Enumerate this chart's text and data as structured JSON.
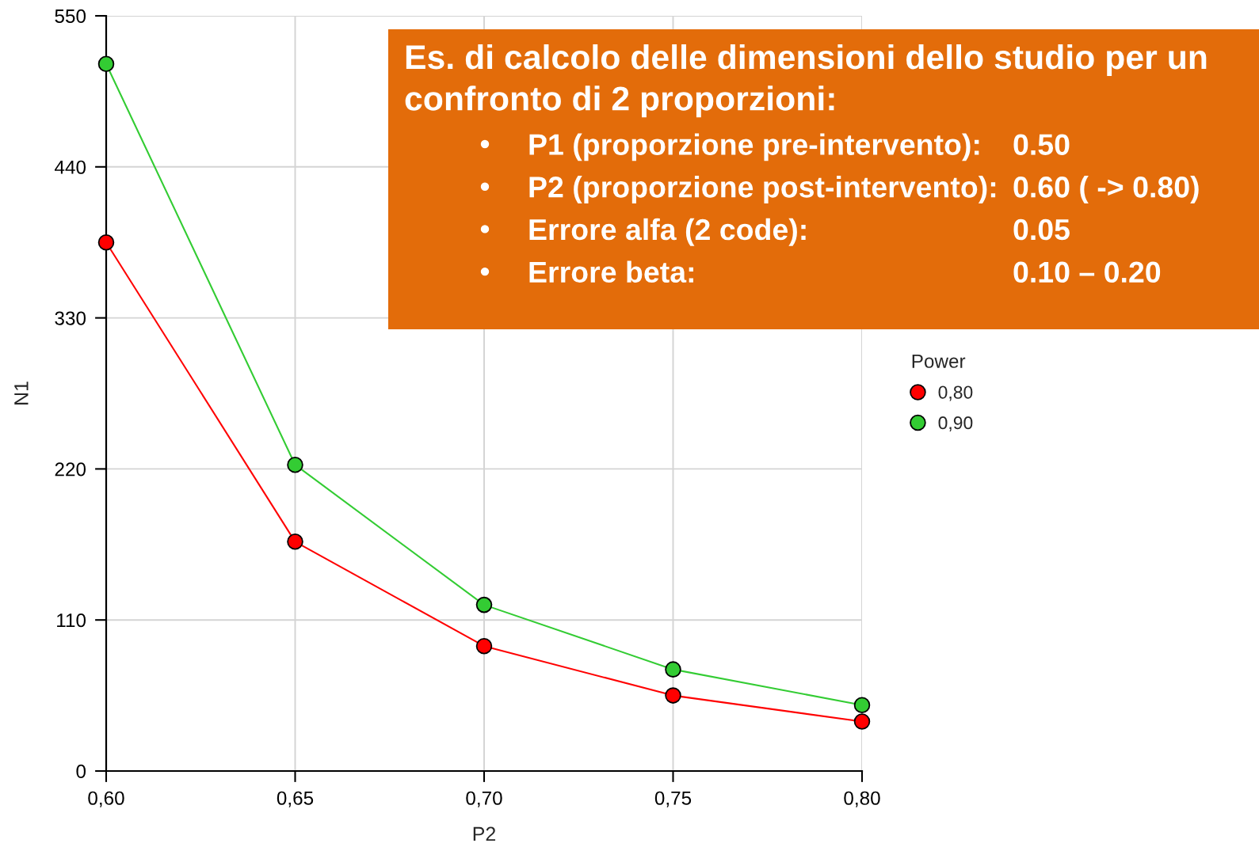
{
  "chart_data": {
    "type": "line",
    "xlabel": "P2",
    "ylabel": "N1",
    "legend_title": "Power",
    "x": [
      0.6,
      0.65,
      0.7,
      0.75,
      0.8
    ],
    "series": [
      {
        "name": "0,80",
        "color": "#ff0000",
        "values": [
          385,
          167,
          91,
          55,
          36
        ]
      },
      {
        "name": "0,90",
        "color": "#33cc33",
        "values": [
          515,
          223,
          121,
          74,
          48
        ]
      }
    ],
    "xlim": [
      0.6,
      0.8
    ],
    "ylim": [
      0,
      550
    ],
    "xticks": [
      {
        "value": 0.6,
        "label": "0,60"
      },
      {
        "value": 0.65,
        "label": "0,65"
      },
      {
        "value": 0.7,
        "label": "0,70"
      },
      {
        "value": 0.75,
        "label": "0,75"
      },
      {
        "value": 0.8,
        "label": "0,80"
      }
    ],
    "yticks": [
      0,
      110,
      220,
      330,
      440,
      550
    ],
    "grid": true,
    "legend": "right",
    "marker": "circle",
    "line_style": "solid",
    "annotations": [
      "Es. di calcolo delle dimensioni dello studio per un confronto di 2 proporzioni:",
      "P1 (proporzione pre-intervento):",
      "0.50",
      "P2 (proporzione post-intervento):",
      "0.60 ( -> 0.80)",
      "Errore alfa (2 code):",
      "0.05",
      "Errore beta:",
      "0.10 – 0.20"
    ]
  }
}
